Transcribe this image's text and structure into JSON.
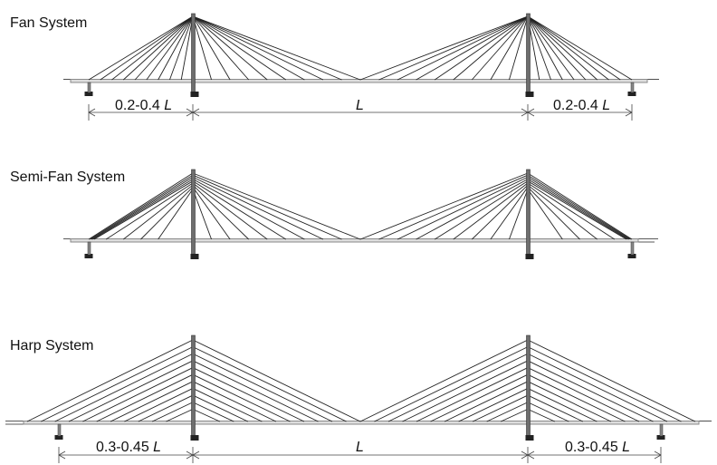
{
  "diagrams": [
    {
      "title": "Fan System",
      "dims": {
        "left": "0.2-0.4 ",
        "main": "",
        "right": "0.2-0.4 ",
        "unit": "L"
      }
    },
    {
      "title": "Semi-Fan System"
    },
    {
      "title": "Harp System",
      "dims": {
        "left": "0.3-0.45 ",
        "main": "",
        "right": "0.3-0.45 ",
        "unit": "L"
      }
    }
  ],
  "colors": {
    "line": "#222222",
    "deck": "#8a8a8a",
    "tower": "#6e6e6e"
  }
}
